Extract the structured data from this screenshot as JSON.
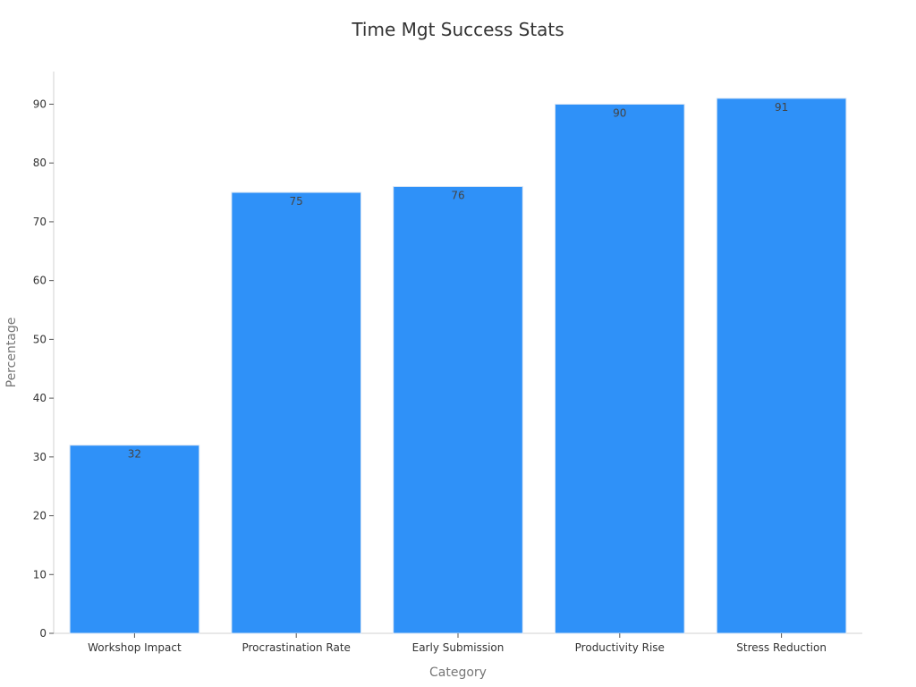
{
  "chart_data": {
    "type": "bar",
    "title": "Time Mgt Success Stats",
    "xlabel": "Category",
    "ylabel": "Percentage",
    "categories": [
      "Workshop Impact",
      "Procrastination Rate",
      "Early Submission",
      "Productivity Rise",
      "Stress Reduction"
    ],
    "values": [
      32,
      75,
      76,
      90,
      91
    ],
    "ylim": [
      0,
      95.55
    ],
    "yticks": [
      0,
      10,
      20,
      30,
      40,
      50,
      60,
      70,
      80,
      90
    ],
    "bar_color": "#2f91f8",
    "grid": false,
    "legend": "none"
  }
}
